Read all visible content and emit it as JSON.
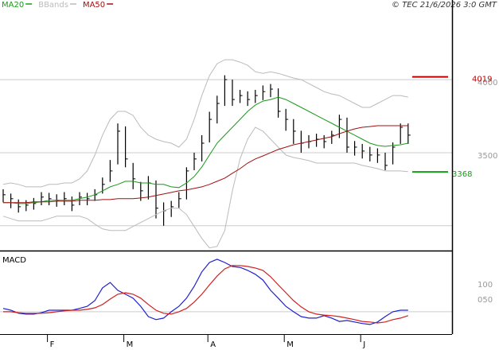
{
  "chart_data": [
    {
      "type": "ohlc",
      "note": "© TEC 21/6/2026 3:0 GMT",
      "categories": [
        null,
        null,
        null,
        null,
        null,
        null,
        "F",
        null,
        null,
        null,
        null,
        null,
        null,
        null,
        null,
        null,
        "M",
        null,
        null,
        null,
        null,
        null,
        null,
        null,
        null,
        null,
        null,
        "A",
        null,
        null,
        null,
        null,
        null,
        null,
        null,
        null,
        null,
        "M",
        null,
        null,
        null,
        null,
        null,
        null,
        null,
        null,
        null,
        "J",
        null,
        null,
        null,
        null,
        null,
        null
      ],
      "high": [
        3250,
        3220,
        3180,
        3175,
        3190,
        3230,
        3225,
        3215,
        3230,
        3200,
        3230,
        3225,
        3250,
        3330,
        3450,
        3700,
        3680,
        3430,
        3300,
        3340,
        3310,
        3160,
        3170,
        3230,
        3400,
        3500,
        3620,
        3780,
        3890,
        4030,
        4000,
        3930,
        3920,
        3930,
        3960,
        3970,
        3940,
        3800,
        3730,
        3650,
        3620,
        3630,
        3620,
        3650,
        3760,
        3740,
        3580,
        3560,
        3540,
        3530,
        3500,
        3570,
        3700,
        3700
      ],
      "low": [
        3160,
        3120,
        3090,
        3100,
        3110,
        3140,
        3140,
        3130,
        3140,
        3100,
        3140,
        3140,
        3170,
        3220,
        3300,
        3420,
        3400,
        3250,
        3170,
        3180,
        3050,
        3000,
        3060,
        3120,
        3180,
        3380,
        3440,
        3570,
        3700,
        3820,
        3820,
        3840,
        3820,
        3840,
        3860,
        3880,
        3740,
        3650,
        3560,
        3500,
        3530,
        3540,
        3530,
        3560,
        3600,
        3500,
        3480,
        3460,
        3440,
        3430,
        3380,
        3420,
        3560,
        3560
      ],
      "close": [
        3212,
        3185,
        3130,
        3141,
        3152,
        3196,
        3185,
        3174,
        3185,
        3141,
        3196,
        3185,
        3212,
        3283,
        3375,
        3647,
        3457,
        3321,
        3239,
        3293,
        3120,
        3103,
        3130,
        3185,
        3375,
        3457,
        3565,
        3728,
        3837,
        4000,
        3864,
        3891,
        3864,
        3891,
        3918,
        3935,
        3783,
        3728,
        3647,
        3565,
        3576,
        3592,
        3576,
        3620,
        3728,
        3538,
        3538,
        3511,
        3484,
        3484,
        3413,
        3538,
        3674,
        3620
      ],
      "bar_color": "#000000",
      "series": [
        {
          "name": "MA20",
          "color": "#1a9a1a",
          "values": [
            3158,
            3158,
            3152,
            3152,
            3158,
            3163,
            3174,
            3174,
            3174,
            3174,
            3185,
            3196,
            3212,
            3239,
            3266,
            3283,
            3304,
            3304,
            3293,
            3293,
            3283,
            3283,
            3266,
            3261,
            3293,
            3337,
            3402,
            3484,
            3565,
            3620,
            3674,
            3728,
            3783,
            3826,
            3853,
            3864,
            3880,
            3864,
            3837,
            3810,
            3783,
            3755,
            3728,
            3701,
            3674,
            3647,
            3620,
            3592,
            3565,
            3549,
            3543,
            3549,
            3554,
            3565
          ]
        },
        {
          "name": "BBands",
          "color": "#bbbbbb",
          "upper": [
            3283,
            3293,
            3283,
            3266,
            3266,
            3266,
            3283,
            3283,
            3293,
            3293,
            3321,
            3375,
            3484,
            3620,
            3728,
            3783,
            3783,
            3755,
            3674,
            3620,
            3592,
            3576,
            3565,
            3538,
            3592,
            3728,
            3891,
            4027,
            4109,
            4136,
            4136,
            4120,
            4098,
            4054,
            4043,
            4054,
            4043,
            4027,
            4011,
            4000,
            3973,
            3946,
            3918,
            3902,
            3891,
            3864,
            3837,
            3810,
            3810,
            3837,
            3864,
            3891,
            3891,
            3880
          ],
          "lower": [
            3065,
            3049,
            3033,
            3033,
            3033,
            3033,
            3049,
            3065,
            3065,
            3065,
            3065,
            3049,
            3011,
            2978,
            2967,
            2967,
            2967,
            2995,
            3022,
            3049,
            3076,
            3103,
            3120,
            3120,
            3076,
            2995,
            2913,
            2848,
            2859,
            2967,
            3239,
            3457,
            3592,
            3674,
            3647,
            3592,
            3538,
            3484,
            3467,
            3457,
            3446,
            3429,
            3429,
            3429,
            3429,
            3429,
            3429,
            3413,
            3402,
            3391,
            3375,
            3375,
            3375,
            3370
          ]
        },
        {
          "name": "MA50",
          "color": "#a01010",
          "values": [
            3158,
            3158,
            3158,
            3158,
            3163,
            3163,
            3163,
            3168,
            3168,
            3168,
            3174,
            3174,
            3174,
            3179,
            3179,
            3185,
            3185,
            3185,
            3190,
            3196,
            3207,
            3217,
            3228,
            3239,
            3245,
            3255,
            3266,
            3283,
            3304,
            3326,
            3359,
            3391,
            3429,
            3457,
            3478,
            3500,
            3522,
            3538,
            3554,
            3565,
            3576,
            3587,
            3598,
            3609,
            3630,
            3647,
            3663,
            3674,
            3679,
            3685,
            3685,
            3685,
            3685,
            3685
          ]
        }
      ],
      "ylim": [
        2830,
        4545
      ],
      "yticks": [
        3500,
        4000
      ],
      "grid_lines": [
        3000,
        3500,
        4000
      ],
      "markers": [
        {
          "value": 4019,
          "color": "#c00000"
        },
        {
          "value": 3368,
          "color": "#1a9a1a"
        }
      ]
    },
    {
      "type": "line",
      "title": "MACD",
      "series": [
        {
          "color": "#2020d0",
          "values": [
            11,
            5,
            -5,
            -8,
            -8,
            -3,
            5,
            5,
            5,
            5,
            11,
            18,
            37,
            79,
            97,
            71,
            58,
            45,
            18,
            -16,
            -26,
            -21,
            0,
            18,
            45,
            84,
            132,
            163,
            174,
            163,
            150,
            147,
            137,
            124,
            105,
            71,
            45,
            18,
            0,
            -16,
            -21,
            -21,
            -13,
            -21,
            -32,
            -29,
            -34,
            -39,
            -42,
            -34,
            -16,
            0,
            5,
            5
          ]
        },
        {
          "color": "#d02020",
          "values": [
            0,
            0,
            -3,
            -5,
            -5,
            -5,
            -3,
            0,
            3,
            5,
            5,
            8,
            13,
            24,
            42,
            58,
            63,
            58,
            45,
            24,
            5,
            -5,
            -8,
            0,
            11,
            32,
            58,
            89,
            118,
            142,
            153,
            153,
            150,
            145,
            137,
            116,
            89,
            63,
            37,
            16,
            0,
            -8,
            -11,
            -13,
            -16,
            -21,
            -26,
            -32,
            -34,
            -37,
            -34,
            -26,
            -21,
            -13
          ]
        }
      ],
      "ylim": [
        -74,
        200
      ],
      "yticks": [
        100,
        {
          "value": 50,
          "label": "050"
        }
      ],
      "grid_lines": [
        0
      ]
    }
  ]
}
